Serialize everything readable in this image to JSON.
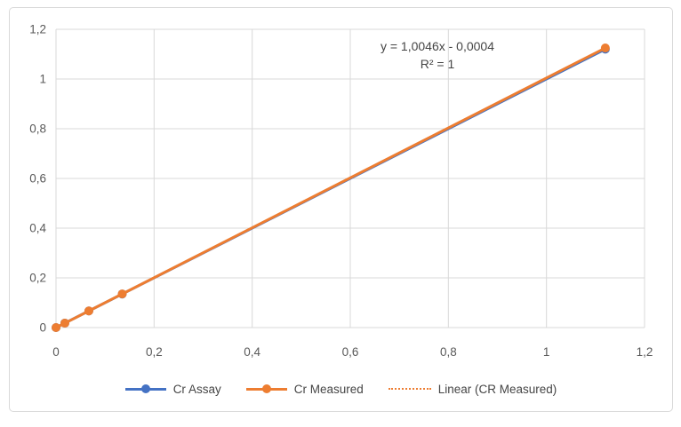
{
  "chart_data": {
    "type": "scatter-line",
    "annotation": {
      "line1": "y = 1,0046x - 0,0004",
      "line2": "R² = 1"
    },
    "x_axis": {
      "min": 0,
      "max": 1.2,
      "tick_step": 0.2,
      "tick_labels": [
        "0",
        "0,2",
        "0,4",
        "0,6",
        "0,8",
        "1",
        "1,2"
      ]
    },
    "y_axis": {
      "min": 0,
      "max": 1.2,
      "tick_step": 0.2,
      "tick_labels": [
        "0",
        "0,2",
        "0,4",
        "0,6",
        "0,8",
        "1",
        "1,2"
      ]
    },
    "grid": true,
    "legend_position": "bottom",
    "series": [
      {
        "name": "Cr Assay",
        "color": "#4472C4",
        "marker": "circle",
        "x": [
          0,
          0.018,
          0.067,
          0.135,
          1.12
        ],
        "y": [
          0,
          0.018,
          0.067,
          0.135,
          1.12
        ]
      },
      {
        "name": "Cr Measured",
        "color": "#ED7D31",
        "marker": "circle",
        "x": [
          0,
          0.018,
          0.067,
          0.135,
          1.12
        ],
        "y": [
          0,
          0.0177,
          0.0669,
          0.1352,
          1.1248
        ]
      }
    ],
    "trendline": {
      "name": "Linear (CR Measured)",
      "color": "#ED7D31",
      "style": "dotted",
      "slope": 1.0046,
      "intercept": -0.0004,
      "x_range": [
        0,
        1.12
      ]
    },
    "legend": {
      "entries": [
        {
          "label": "Cr Assay",
          "color": "#4472C4",
          "swatch": "line-marker"
        },
        {
          "label": "Cr Measured",
          "color": "#ED7D31",
          "swatch": "line-marker"
        },
        {
          "label": "Linear (CR Measured)",
          "color": "#ED7D31",
          "swatch": "dotted-line"
        }
      ]
    },
    "colors": {
      "gridline": "#D9D9D9",
      "axis_text": "#595959",
      "annotation_text": "#454545",
      "frame_border": "#D9D9D9",
      "background": "#FFFFFF"
    }
  }
}
